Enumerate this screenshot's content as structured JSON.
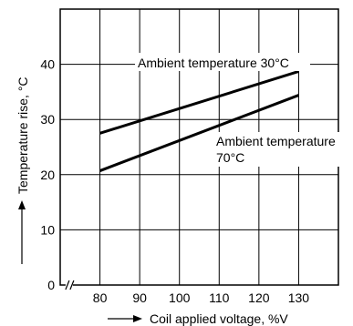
{
  "chart_data": {
    "type": "line",
    "title": "",
    "xlabel": "Coil applied voltage, %V",
    "ylabel": "Temperature rise, °C",
    "x_ticks": [
      80,
      90,
      100,
      110,
      120,
      130
    ],
    "y_ticks": [
      0,
      10,
      20,
      30,
      40
    ],
    "xlim": [
      70,
      140
    ],
    "ylim": [
      0,
      50
    ],
    "x_axis_break": true,
    "grid": true,
    "series": [
      {
        "name": "Ambient temperature 30°C",
        "x": [
          80,
          130
        ],
        "y": [
          27.5,
          38.7
        ]
      },
      {
        "name": "Ambient temperature 70°C",
        "x": [
          80,
          130
        ],
        "y": [
          20.7,
          34.4
        ]
      }
    ],
    "annotations": [
      {
        "text": "Ambient temperature 30°C",
        "series": 0
      },
      {
        "lines": [
          "Ambient temperature",
          "70°C"
        ],
        "series": 1
      }
    ],
    "colors": {
      "line": "#000000",
      "grid": "#000000"
    }
  }
}
